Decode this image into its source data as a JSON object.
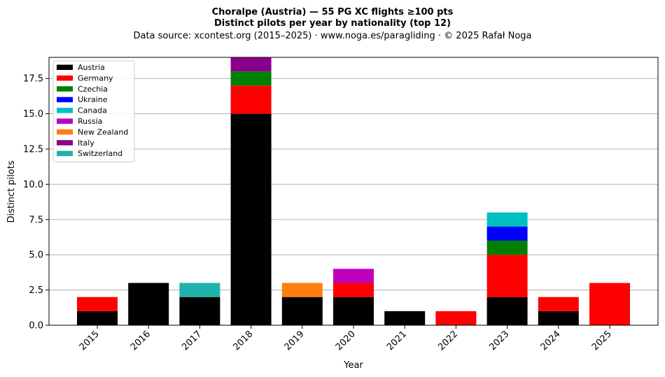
{
  "chart_data": {
    "type": "bar",
    "stacked": true,
    "title_line1": "Choralpe (Austria)  —  55 PG XC flights ≥100 pts",
    "title_line2": "Distinct pilots per year by nationality (top 12)",
    "subtitle": "Data source: xcontest.org (2015–2025)  ·  www.noga.es/paragliding  ·  © 2025 Rafał Noga",
    "xlabel": "Year",
    "ylabel": "Distinct pilots",
    "ylim": [
      0,
      19
    ],
    "yticks": [
      0,
      2.5,
      5,
      7.5,
      10,
      12.5,
      15,
      17.5
    ],
    "ytick_labels": [
      "0.0",
      "2.5",
      "5.0",
      "7.5",
      "10.0",
      "12.5",
      "15.0",
      "17.5"
    ],
    "grid": "y",
    "legend_position": "top-left",
    "categories": [
      "2015",
      "2016",
      "2017",
      "2018",
      "2019",
      "2020",
      "2021",
      "2022",
      "2023",
      "2024",
      "2025"
    ],
    "series": [
      {
        "name": "Austria",
        "color": "#000000",
        "values": [
          1,
          3,
          2,
          15,
          2,
          2,
          1,
          0,
          2,
          1,
          0
        ]
      },
      {
        "name": "Germany",
        "color": "#ff0000",
        "values": [
          1,
          0,
          0,
          2,
          0,
          1,
          0,
          1,
          3,
          1,
          3
        ]
      },
      {
        "name": "Czechia",
        "color": "#008000",
        "values": [
          0,
          0,
          0,
          1,
          0,
          0,
          0,
          0,
          1,
          0,
          0
        ]
      },
      {
        "name": "Ukraine",
        "color": "#0000ff",
        "values": [
          0,
          0,
          0,
          0,
          0,
          0,
          0,
          0,
          1,
          0,
          0
        ]
      },
      {
        "name": "Canada",
        "color": "#00bfbf",
        "values": [
          0,
          0,
          0,
          0,
          0,
          0,
          0,
          0,
          1,
          0,
          0
        ]
      },
      {
        "name": "Russia",
        "color": "#bf00bf",
        "values": [
          0,
          0,
          0,
          0,
          0,
          1,
          0,
          0,
          0,
          0,
          0
        ]
      },
      {
        "name": "New Zealand",
        "color": "#ff7f0e",
        "values": [
          0,
          0,
          0,
          0,
          1,
          0,
          0,
          0,
          0,
          0,
          0
        ]
      },
      {
        "name": "Italy",
        "color": "#8b008b",
        "values": [
          0,
          0,
          0,
          1,
          0,
          0,
          0,
          0,
          0,
          0,
          0
        ]
      },
      {
        "name": "Switzerland",
        "color": "#20b2aa",
        "values": [
          0,
          0,
          1,
          0,
          0,
          0,
          0,
          0,
          0,
          0,
          0
        ]
      }
    ]
  }
}
